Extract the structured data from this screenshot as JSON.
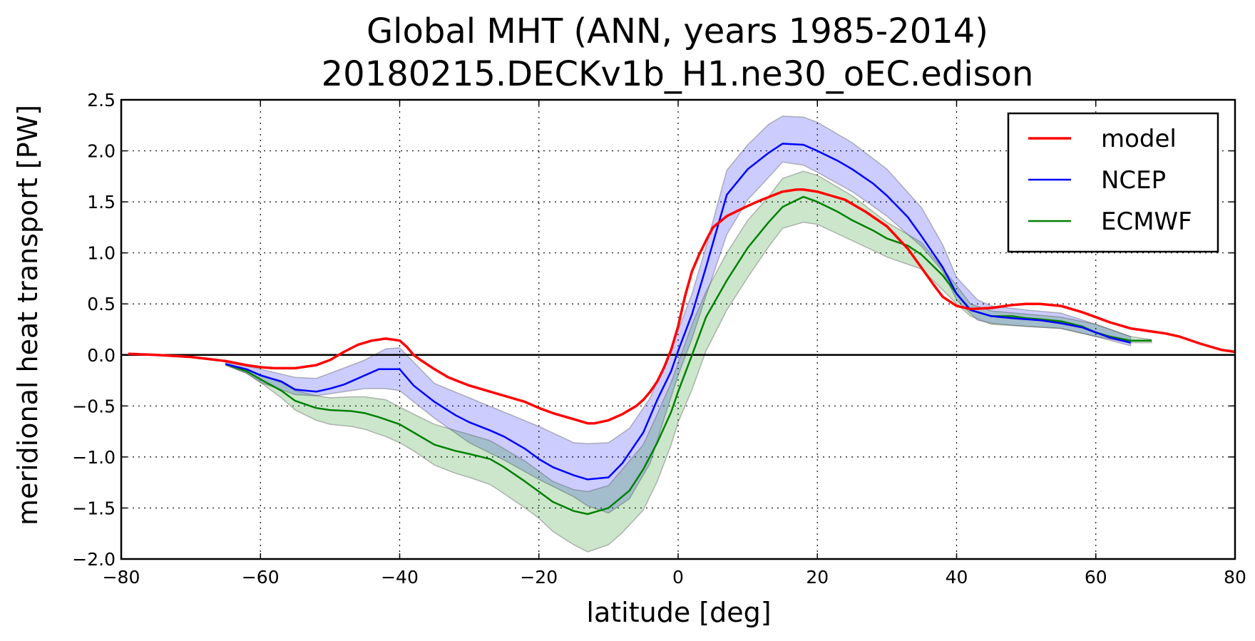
{
  "chart_data": {
    "type": "line",
    "title": [
      "Global MHT (ANN, years 1985-2014)",
      "20180215.DECKv1b_H1.ne30_oEC.edison"
    ],
    "xlabel": "latitude [deg]",
    "ylabel": "meridional heat transport [PW]",
    "xlim": [
      -80,
      80
    ],
    "ylim": [
      -2.0,
      2.5
    ],
    "xticks": [
      -80,
      -60,
      -40,
      -20,
      0,
      20,
      40,
      60,
      80
    ],
    "xtick_labels": [
      "−80",
      "−60",
      "−40",
      "−20",
      "0",
      "20",
      "40",
      "60",
      "80"
    ],
    "yticks": [
      2.5,
      2.0,
      1.5,
      1.0,
      0.5,
      0.0,
      -0.5,
      -1.0,
      -1.5,
      -2.0
    ],
    "ytick_labels": [
      "2.5",
      "2.0",
      "1.5",
      "1.0",
      "0.5",
      "0.0",
      "−0.5",
      "−1.0",
      "−1.5",
      "−2.0"
    ],
    "grid": true,
    "legend_position": "top-right",
    "zero_line": true,
    "series": [
      {
        "name": "model",
        "color": "#ff0000",
        "x": [
          -79,
          -75,
          -70,
          -65,
          -62,
          -60,
          -58,
          -55,
          -52,
          -50,
          -48,
          -46,
          -44,
          -42,
          -40,
          -39,
          -38,
          -37,
          -35,
          -33,
          -30,
          -27,
          -25,
          -22,
          -20,
          -18,
          -15,
          -13,
          -12,
          -10,
          -8,
          -6,
          -5,
          -4,
          -3,
          -2,
          -1,
          0,
          1,
          2,
          3,
          4,
          5,
          7,
          10,
          12,
          15,
          17,
          18,
          20,
          22,
          24,
          25,
          27,
          30,
          33,
          35,
          37,
          38,
          40,
          42,
          45,
          48,
          50,
          52,
          55,
          58,
          60,
          62,
          65,
          68,
          70,
          72,
          75,
          78,
          80
        ],
        "values": [
          0.01,
          0.0,
          -0.02,
          -0.06,
          -0.1,
          -0.12,
          -0.13,
          -0.13,
          -0.1,
          -0.05,
          0.03,
          0.1,
          0.14,
          0.16,
          0.14,
          0.08,
          0.0,
          -0.05,
          -0.14,
          -0.22,
          -0.3,
          -0.36,
          -0.4,
          -0.46,
          -0.52,
          -0.57,
          -0.63,
          -0.67,
          -0.67,
          -0.64,
          -0.58,
          -0.5,
          -0.44,
          -0.36,
          -0.26,
          -0.12,
          0.05,
          0.28,
          0.58,
          0.82,
          0.98,
          1.12,
          1.25,
          1.36,
          1.46,
          1.52,
          1.6,
          1.62,
          1.62,
          1.6,
          1.56,
          1.52,
          1.48,
          1.4,
          1.26,
          1.04,
          0.85,
          0.66,
          0.57,
          0.48,
          0.45,
          0.46,
          0.49,
          0.5,
          0.5,
          0.48,
          0.42,
          0.37,
          0.32,
          0.26,
          0.23,
          0.21,
          0.18,
          0.11,
          0.05,
          0.03
        ]
      },
      {
        "name": "NCEP",
        "color": "#0000ff",
        "x": [
          -65,
          -62,
          -60,
          -57,
          -55,
          -52,
          -50,
          -48,
          -45,
          -43,
          -40,
          -38,
          -35,
          -32,
          -30,
          -27,
          -25,
          -22,
          -20,
          -18,
          -15,
          -13,
          -10,
          -8,
          -5,
          -3,
          -1,
          0,
          2,
          4,
          7,
          10,
          13,
          15,
          18,
          20,
          23,
          25,
          28,
          30,
          33,
          35,
          38,
          40,
          42,
          45,
          48,
          50,
          52,
          55,
          58,
          60,
          62,
          65
        ],
        "values": [
          -0.09,
          -0.14,
          -0.2,
          -0.26,
          -0.34,
          -0.36,
          -0.33,
          -0.29,
          -0.2,
          -0.14,
          -0.14,
          -0.3,
          -0.46,
          -0.59,
          -0.66,
          -0.74,
          -0.8,
          -0.92,
          -1.02,
          -1.1,
          -1.18,
          -1.22,
          -1.2,
          -1.06,
          -0.76,
          -0.44,
          -0.16,
          0.04,
          0.4,
          0.86,
          1.57,
          1.82,
          1.98,
          2.07,
          2.06,
          2.0,
          1.9,
          1.82,
          1.68,
          1.56,
          1.35,
          1.16,
          0.86,
          0.6,
          0.44,
          0.38,
          0.36,
          0.35,
          0.34,
          0.31,
          0.27,
          0.22,
          0.17,
          0.12
        ]
      },
      {
        "name": "ECMWF",
        "color": "#008000",
        "x": [
          -65,
          -62,
          -60,
          -57,
          -55,
          -52,
          -50,
          -47,
          -45,
          -43,
          -40,
          -38,
          -35,
          -32,
          -30,
          -27,
          -25,
          -22,
          -20,
          -18,
          -15,
          -13,
          -10,
          -7,
          -5,
          -3,
          -1,
          0,
          2,
          4,
          7,
          10,
          13,
          15,
          18,
          20,
          23,
          25,
          28,
          30,
          33,
          35,
          38,
          40,
          42,
          45,
          48,
          50,
          52,
          55,
          58,
          60,
          62,
          65,
          68
        ],
        "values": [
          -0.09,
          -0.16,
          -0.24,
          -0.35,
          -0.45,
          -0.52,
          -0.54,
          -0.55,
          -0.57,
          -0.61,
          -0.68,
          -0.76,
          -0.88,
          -0.94,
          -0.97,
          -1.02,
          -1.1,
          -1.24,
          -1.34,
          -1.44,
          -1.53,
          -1.56,
          -1.5,
          -1.33,
          -1.12,
          -0.86,
          -0.56,
          -0.36,
          0.0,
          0.37,
          0.73,
          1.05,
          1.3,
          1.45,
          1.55,
          1.5,
          1.4,
          1.32,
          1.22,
          1.14,
          1.07,
          0.98,
          0.78,
          0.6,
          0.44,
          0.38,
          0.38,
          0.36,
          0.35,
          0.33,
          0.28,
          0.22,
          0.18,
          0.14,
          0.14
        ]
      }
    ],
    "bands": [
      {
        "series": "NCEP",
        "fill": "#0000ff",
        "fill_opacity": 0.2,
        "x": [
          -65,
          -62,
          -60,
          -55,
          -52,
          -50,
          -45,
          -42,
          -40,
          -35,
          -30,
          -25,
          -20,
          -15,
          -13,
          -10,
          -7,
          -4,
          -2,
          0,
          2,
          4,
          7,
          10,
          13,
          15,
          18,
          20,
          25,
          30,
          35,
          38,
          40,
          43,
          45,
          50,
          55,
          60,
          65
        ],
        "upper": [
          -0.07,
          -0.11,
          -0.14,
          -0.22,
          -0.23,
          -0.18,
          -0.05,
          0.06,
          0.07,
          -0.28,
          -0.42,
          -0.56,
          -0.7,
          -0.86,
          -0.87,
          -0.86,
          -0.72,
          -0.42,
          -0.1,
          0.24,
          0.6,
          1.06,
          1.81,
          2.06,
          2.26,
          2.34,
          2.33,
          2.28,
          2.08,
          1.82,
          1.44,
          1.08,
          0.76,
          0.54,
          0.48,
          0.44,
          0.41,
          0.3,
          0.18
        ],
        "lower": [
          -0.1,
          -0.18,
          -0.27,
          -0.39,
          -0.4,
          -0.38,
          -0.33,
          -0.33,
          -0.35,
          -0.62,
          -0.86,
          -1.03,
          -1.22,
          -1.39,
          -1.48,
          -1.55,
          -1.41,
          -1.06,
          -0.62,
          -0.2,
          0.16,
          0.58,
          1.18,
          1.52,
          1.74,
          1.89,
          1.86,
          1.79,
          1.6,
          1.36,
          1.06,
          0.82,
          0.54,
          0.34,
          0.31,
          0.28,
          0.26,
          0.18,
          0.09
        ]
      },
      {
        "series": "ECMWF",
        "fill": "#008000",
        "fill_opacity": 0.2,
        "x": [
          -65,
          -62,
          -60,
          -57,
          -55,
          -52,
          -50,
          -47,
          -45,
          -42,
          -40,
          -38,
          -35,
          -32,
          -30,
          -27,
          -25,
          -22,
          -20,
          -18,
          -15,
          -13,
          -10,
          -8,
          -5,
          -3,
          -1,
          0,
          2,
          4,
          7,
          10,
          13,
          15,
          18,
          20,
          25,
          30,
          35,
          40,
          42,
          45,
          50,
          55,
          60,
          65,
          68
        ],
        "upper": [
          -0.08,
          -0.14,
          -0.19,
          -0.27,
          -0.35,
          -0.4,
          -0.42,
          -0.41,
          -0.41,
          -0.44,
          -0.51,
          -0.58,
          -0.68,
          -0.74,
          -0.78,
          -0.84,
          -0.92,
          -1.04,
          -1.14,
          -1.24,
          -1.32,
          -1.34,
          -1.28,
          -1.12,
          -0.88,
          -0.58,
          -0.27,
          -0.08,
          0.3,
          0.62,
          1.0,
          1.32,
          1.55,
          1.73,
          1.8,
          1.76,
          1.56,
          1.3,
          1.1,
          0.68,
          0.5,
          0.43,
          0.4,
          0.37,
          0.3,
          0.18,
          0.15
        ],
        "lower": [
          -0.1,
          -0.18,
          -0.27,
          -0.42,
          -0.54,
          -0.64,
          -0.68,
          -0.7,
          -0.73,
          -0.8,
          -0.86,
          -0.94,
          -1.08,
          -1.16,
          -1.2,
          -1.27,
          -1.36,
          -1.5,
          -1.6,
          -1.73,
          -1.86,
          -1.93,
          -1.86,
          -1.74,
          -1.52,
          -1.24,
          -0.88,
          -0.66,
          -0.34,
          0.04,
          0.44,
          0.76,
          1.06,
          1.24,
          1.3,
          1.28,
          1.12,
          0.96,
          0.84,
          0.5,
          0.38,
          0.3,
          0.28,
          0.26,
          0.18,
          0.12,
          0.12
        ]
      }
    ]
  }
}
